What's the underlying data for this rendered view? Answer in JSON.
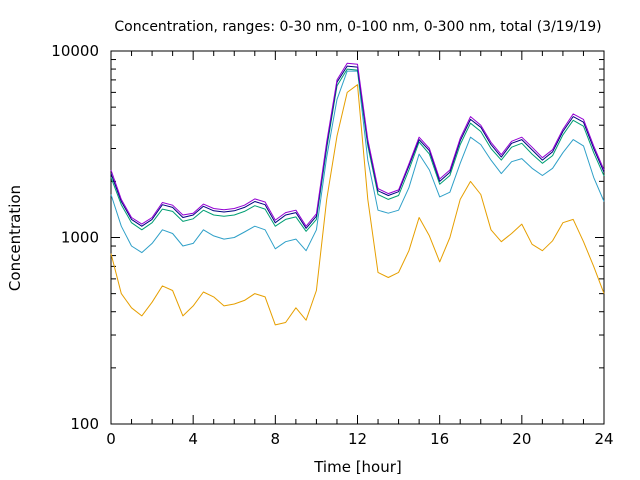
{
  "chart_data": {
    "type": "line",
    "title": "Concentration, ranges: 0-30 nm, 0-100 nm, 0-300 nm, total (3/19/19)",
    "xlabel": "Time [hour]",
    "ylabel": "Concentration",
    "xlim": [
      0,
      24
    ],
    "ylim": [
      100,
      10000
    ],
    "yscale": "log",
    "grid": false,
    "legend": "none",
    "x_ticks": [
      0,
      4,
      8,
      12,
      16,
      20,
      24
    ],
    "y_ticks": [
      100,
      1000,
      10000
    ],
    "series": [
      {
        "color": "#e69f00",
        "x": [
          0,
          0.5,
          1,
          1.5,
          2,
          2.5,
          3,
          3.5,
          4,
          4.5,
          5,
          5.5,
          6,
          6.5,
          7,
          7.5,
          8,
          8.5,
          9,
          9.5,
          10,
          10.5,
          11,
          11.5,
          12,
          12.5,
          13,
          13.5,
          14,
          14.5,
          15,
          15.5,
          16,
          16.5,
          17,
          17.5,
          18,
          18.5,
          19,
          19.5,
          20,
          20.5,
          21,
          21.5,
          22,
          22.5,
          23,
          23.5,
          24
        ],
        "y": [
          820,
          500,
          420,
          380,
          450,
          550,
          520,
          380,
          430,
          510,
          480,
          430,
          440,
          460,
          500,
          480,
          340,
          350,
          420,
          360,
          520,
          1600,
          3500,
          6000,
          6600,
          1600,
          650,
          610,
          650,
          850,
          1280,
          1020,
          740,
          1000,
          1600,
          2000,
          1700,
          1100,
          950,
          1050,
          1180,
          920,
          850,
          960,
          1200,
          1250,
          950,
          700,
          500
        ]
      },
      {
        "color": "#2fa0c8",
        "x": [
          0,
          0.5,
          1,
          1.5,
          2,
          2.5,
          3,
          3.5,
          4,
          4.5,
          5,
          5.5,
          6,
          6.5,
          7,
          7.5,
          8,
          8.5,
          9,
          9.5,
          10,
          10.5,
          11,
          11.5,
          12,
          12.5,
          13,
          13.5,
          14,
          14.5,
          15,
          15.5,
          16,
          16.5,
          17,
          17.5,
          18,
          18.5,
          19,
          19.5,
          20,
          20.5,
          21,
          21.5,
          22,
          22.5,
          23,
          23.5,
          24
        ],
        "y": [
          1700,
          1150,
          900,
          830,
          930,
          1100,
          1050,
          900,
          930,
          1100,
          1020,
          980,
          1000,
          1070,
          1150,
          1100,
          870,
          950,
          980,
          850,
          1100,
          2700,
          5500,
          7800,
          7800,
          2600,
          1400,
          1350,
          1400,
          1850,
          2800,
          2300,
          1650,
          1750,
          2500,
          3450,
          3150,
          2600,
          2200,
          2550,
          2650,
          2350,
          2150,
          2350,
          2850,
          3350,
          3100,
          2100,
          1560
        ]
      },
      {
        "color": "#009e73",
        "x": [
          0,
          0.5,
          1,
          1.5,
          2,
          2.5,
          3,
          3.5,
          4,
          4.5,
          5,
          5.5,
          6,
          6.5,
          7,
          7.5,
          8,
          8.5,
          9,
          9.5,
          10,
          10.5,
          11,
          11.5,
          12,
          12.5,
          13,
          13.5,
          14,
          14.5,
          15,
          15.5,
          16,
          16.5,
          17,
          17.5,
          18,
          18.5,
          19,
          19.5,
          20,
          20.5,
          21,
          21.5,
          22,
          22.5,
          23,
          23.5,
          24
        ],
        "y": [
          2100,
          1500,
          1200,
          1100,
          1200,
          1420,
          1380,
          1220,
          1260,
          1400,
          1320,
          1300,
          1320,
          1380,
          1480,
          1420,
          1150,
          1250,
          1290,
          1080,
          1250,
          3000,
          6500,
          8000,
          7900,
          3100,
          1700,
          1600,
          1680,
          2300,
          3250,
          2800,
          1930,
          2150,
          3150,
          4100,
          3700,
          3000,
          2600,
          3050,
          3200,
          2800,
          2500,
          2750,
          3550,
          4250,
          3950,
          2850,
          2140
        ]
      },
      {
        "color": "#000080",
        "x": [
          0,
          0.5,
          1,
          1.5,
          2,
          2.5,
          3,
          3.5,
          4,
          4.5,
          5,
          5.5,
          6,
          6.5,
          7,
          7.5,
          8,
          8.5,
          9,
          9.5,
          10,
          10.5,
          11,
          11.5,
          12,
          12.5,
          13,
          13.5,
          14,
          14.5,
          15,
          15.5,
          16,
          16.5,
          17,
          17.5,
          18,
          18.5,
          19,
          19.5,
          20,
          20.5,
          21,
          21.5,
          22,
          22.5,
          23,
          23.5,
          24
        ],
        "y": [
          2200,
          1560,
          1250,
          1150,
          1250,
          1500,
          1450,
          1280,
          1320,
          1470,
          1390,
          1370,
          1390,
          1450,
          1560,
          1500,
          1200,
          1320,
          1360,
          1120,
          1300,
          3150,
          6800,
          8300,
          8200,
          3250,
          1780,
          1680,
          1760,
          2420,
          3350,
          2920,
          2000,
          2240,
          3300,
          4300,
          3900,
          3150,
          2700,
          3200,
          3350,
          2950,
          2600,
          2880,
          3700,
          4450,
          4150,
          3000,
          2240
        ]
      },
      {
        "color": "#9400d3",
        "x": [
          0,
          0.5,
          1,
          1.5,
          2,
          2.5,
          3,
          3.5,
          4,
          4.5,
          5,
          5.5,
          6,
          6.5,
          7,
          7.5,
          8,
          8.5,
          9,
          9.5,
          10,
          10.5,
          11,
          11.5,
          12,
          12.5,
          13,
          13.5,
          14,
          14.5,
          15,
          15.5,
          16,
          16.5,
          17,
          17.5,
          18,
          18.5,
          19,
          19.5,
          20,
          20.5,
          21,
          21.5,
          22,
          22.5,
          23,
          23.5,
          24
        ],
        "y": [
          2300,
          1600,
          1280,
          1180,
          1280,
          1540,
          1490,
          1320,
          1350,
          1510,
          1430,
          1410,
          1430,
          1490,
          1610,
          1550,
          1240,
          1360,
          1400,
          1150,
          1340,
          3250,
          7000,
          8600,
          8500,
          3350,
          1830,
          1720,
          1800,
          2480,
          3450,
          3000,
          2060,
          2300,
          3400,
          4450,
          4000,
          3240,
          2780,
          3280,
          3450,
          3050,
          2680,
          2960,
          3800,
          4600,
          4300,
          3100,
          2300
        ]
      }
    ]
  }
}
